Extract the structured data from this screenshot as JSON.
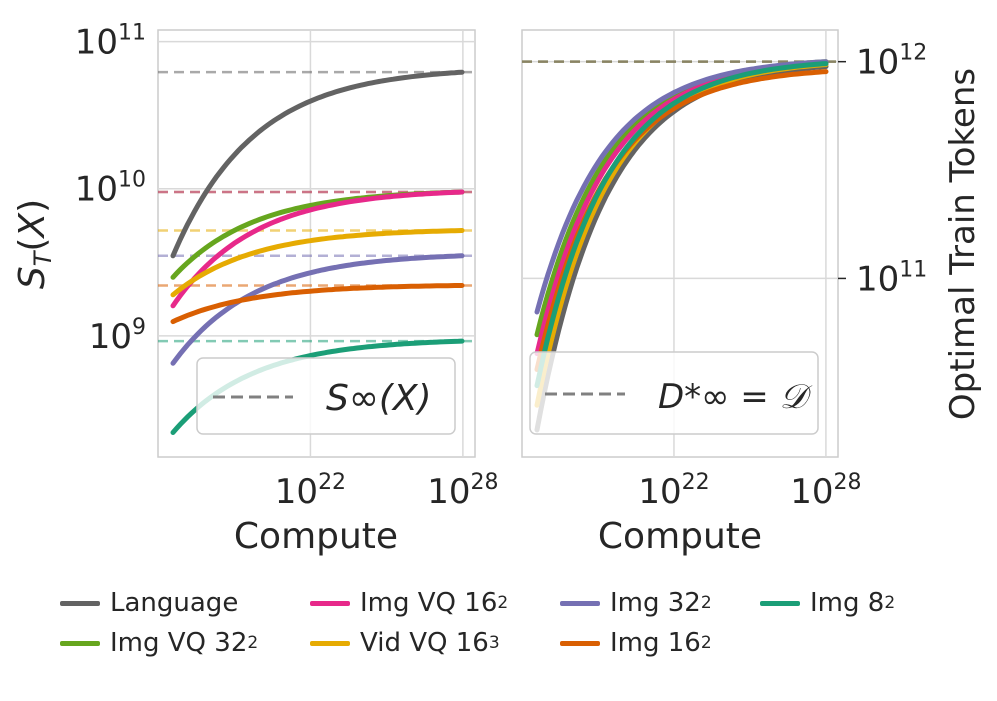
{
  "chart_data": [
    {
      "type": "line",
      "panel": "left",
      "xlabel": "Compute",
      "ylabel": "S_T(X)",
      "yscale": "log",
      "xlim": [
        1e+16,
        3e+28
      ],
      "ylim": [
        150000000.0,
        120000000000.0
      ],
      "x_ticks": [
        {
          "base": "10",
          "exp": "22"
        },
        {
          "base": "10",
          "exp": "28"
        }
      ],
      "y_ticks": [
        {
          "base": "10",
          "exp": "9"
        },
        {
          "base": "10",
          "exp": "10"
        },
        {
          "base": "10",
          "exp": "11"
        }
      ],
      "legend_label": "S∞(X)",
      "legend_position": "bottom-right",
      "series": [
        {
          "name": "Language",
          "color": "#636363",
          "start": 3500000000.0,
          "asymptote": 62000000000.0
        },
        {
          "name": "Img VQ 32²",
          "color": "#66a61e",
          "start": 2500000000.0,
          "asymptote": 9500000000.0
        },
        {
          "name": "Img VQ 16²",
          "color": "#e7298a",
          "start": 1600000000.0,
          "asymptote": 9500000000.0
        },
        {
          "name": "Vid VQ 16³",
          "color": "#e6ab02",
          "start": 1900000000.0,
          "asymptote": 5200000000.0
        },
        {
          "name": "Img 32²",
          "color": "#7570b3",
          "start": 650000000.0,
          "asymptote": 3500000000.0
        },
        {
          "name": "Img 16²",
          "color": "#d95f02",
          "start": 1250000000.0,
          "asymptote": 2200000000.0
        },
        {
          "name": "Img 8²",
          "color": "#1b9e77",
          "start": 220000000.0,
          "asymptote": 920000000.0
        }
      ]
    },
    {
      "type": "line",
      "panel": "right",
      "xlabel": "Compute",
      "ylabel": "Optimal Train Tokens",
      "yscale": "log",
      "xlim": [
        1e+16,
        3e+28
      ],
      "ylim": [
        15000000000.0,
        1400000000000.0
      ],
      "x_ticks": [
        {
          "base": "10",
          "exp": "22"
        },
        {
          "base": "10",
          "exp": "28"
        }
      ],
      "y_ticks": [
        {
          "base": "10",
          "exp": "11"
        },
        {
          "base": "10",
          "exp": "12"
        }
      ],
      "legend_label": "D*∞ = 𝒟",
      "legend_position": "bottom-right",
      "asymptote": 1000000000000.0,
      "series": [
        {
          "name": "Language",
          "color": "#636363",
          "start": 20000000000.0,
          "end": 950000000000.0
        },
        {
          "name": "Img VQ 32²",
          "color": "#66a61e",
          "start": 55000000000.0,
          "end": 1000000000000.0
        },
        {
          "name": "Img VQ 16²",
          "color": "#e7298a",
          "start": 45000000000.0,
          "end": 980000000000.0
        },
        {
          "name": "Vid VQ 16³",
          "color": "#e6ab02",
          "start": 26000000000.0,
          "end": 970000000000.0
        },
        {
          "name": "Img 32²",
          "color": "#7570b3",
          "start": 70000000000.0,
          "end": 1000000000000.0
        },
        {
          "name": "Img 16²",
          "color": "#d95f02",
          "start": 38000000000.0,
          "end": 900000000000.0
        },
        {
          "name": "Img 8²",
          "color": "#1b9e77",
          "start": 32000000000.0,
          "end": 980000000000.0
        }
      ]
    }
  ],
  "legend": {
    "items": [
      {
        "label": "Language",
        "sup": "",
        "color": "#636363"
      },
      {
        "label": "Img VQ 32",
        "sup": "2",
        "color": "#66a61e"
      },
      {
        "label": "Img VQ 16",
        "sup": "2",
        "color": "#e7298a"
      },
      {
        "label": "Vid VQ 16",
        "sup": "3",
        "color": "#e6ab02"
      },
      {
        "label": "Img 32",
        "sup": "2",
        "color": "#7570b3"
      },
      {
        "label": "Img 16",
        "sup": "2",
        "color": "#d95f02"
      },
      {
        "label": "Img 8",
        "sup": "2",
        "color": "#1b9e77"
      }
    ]
  }
}
